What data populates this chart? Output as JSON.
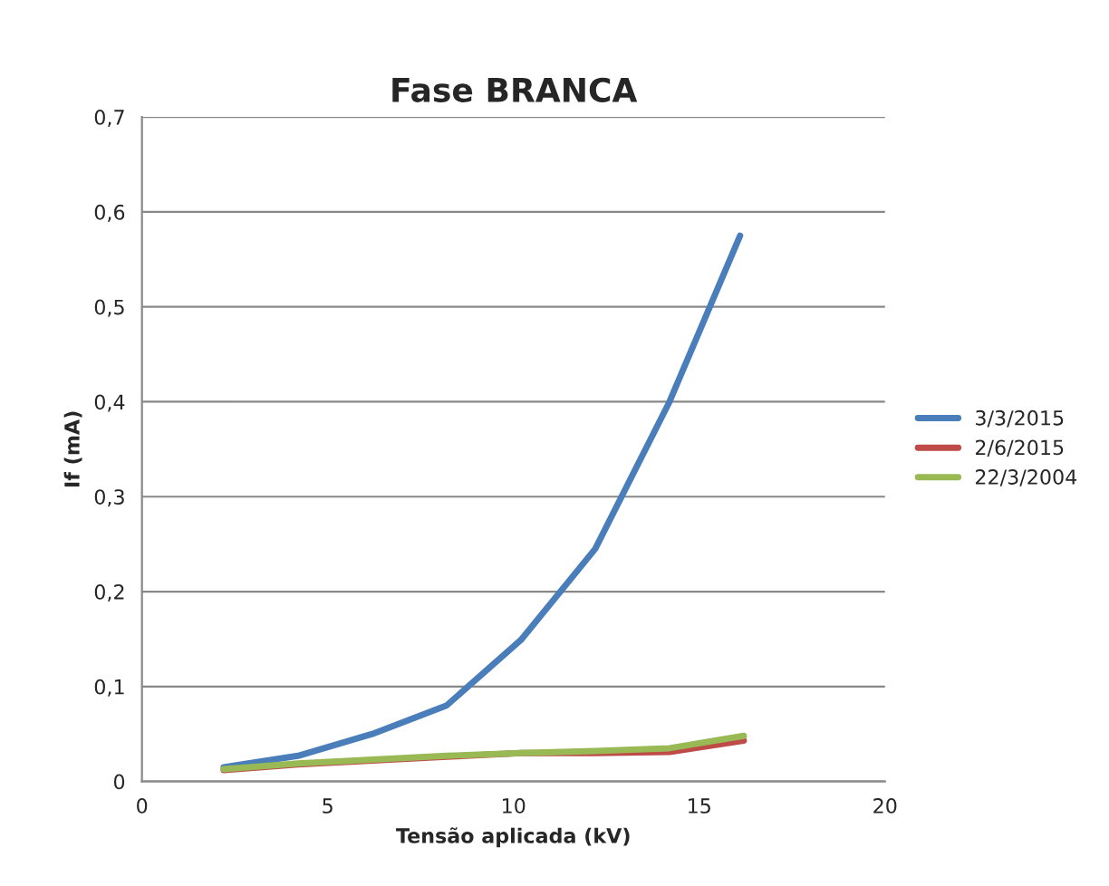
{
  "chart_data": {
    "type": "line",
    "title": "Fase BRANCA",
    "xlabel": "Tensão aplicada (kV)",
    "ylabel": "If (mA)",
    "xlim": [
      0,
      20
    ],
    "xticks": [
      0,
      5,
      10,
      15,
      20
    ],
    "ylim": [
      0,
      0.7
    ],
    "yticks": [
      {
        "value": 0,
        "label": "0"
      },
      {
        "value": 0.1,
        "label": "0,1"
      },
      {
        "value": 0.2,
        "label": "0,2"
      },
      {
        "value": 0.3,
        "label": "0,3"
      },
      {
        "value": 0.4,
        "label": "0,4"
      },
      {
        "value": 0.5,
        "label": "0,5"
      },
      {
        "value": 0.6,
        "label": "0,6"
      },
      {
        "value": 0.7,
        "label": "0,7"
      }
    ],
    "grid": "y",
    "legend": "right",
    "marker": "none",
    "line_style": "solid",
    "series": [
      {
        "name": "3/3/2015",
        "color": "#4a7ebb",
        "x": [
          2.2,
          4.2,
          6.2,
          8.2,
          10.2,
          12.2,
          14.2,
          16.1
        ],
        "values": [
          0.015,
          0.027,
          0.05,
          0.08,
          0.149,
          0.245,
          0.4,
          0.575
        ]
      },
      {
        "name": "2/6/2015",
        "color": "#be4b48",
        "x": [
          2.2,
          4.2,
          6.2,
          8.2,
          10.2,
          12.2,
          14.2,
          16.2
        ],
        "values": [
          0.012,
          0.018,
          0.022,
          0.026,
          0.03,
          0.03,
          0.031,
          0.043
        ]
      },
      {
        "name": "22/3/2004",
        "color": "#98b954",
        "x": [
          2.2,
          4.2,
          6.2,
          8.2,
          10.2,
          12.2,
          14.2,
          16.2
        ],
        "values": [
          0.013,
          0.019,
          0.023,
          0.027,
          0.03,
          0.032,
          0.035,
          0.048
        ]
      }
    ]
  }
}
